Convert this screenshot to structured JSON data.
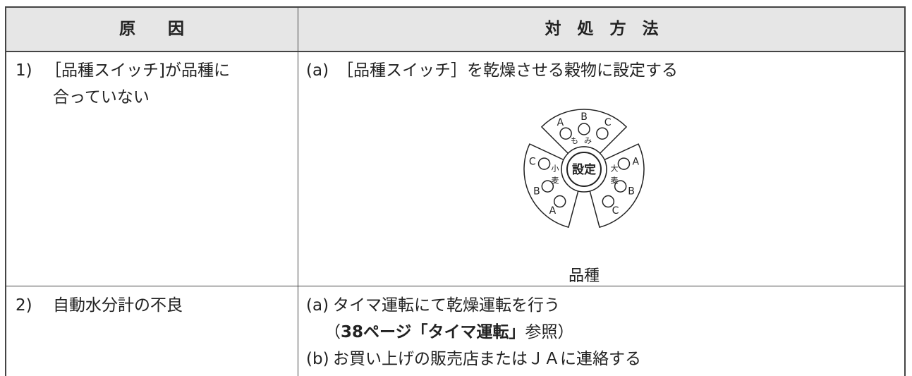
{
  "header": {
    "cause": "原　　因",
    "remedy": "対　処　方　法"
  },
  "rows": [
    {
      "no": "1)",
      "cause": [
        "［品種スイッチ]が品種に",
        "合っていない"
      ],
      "remedies": [
        {
          "label": "(a)",
          "text": "［品種スイッチ］を乾燥させる穀物に設定する"
        }
      ],
      "dial": {
        "groups": [
          {
            "name": "もみ",
            "options": [
              "A",
              "B",
              "C"
            ]
          },
          {
            "name": "小麦",
            "options": [
              "C",
              "B",
              "A"
            ]
          },
          {
            "name": "大麦",
            "options": [
              "A",
              "B",
              "C"
            ]
          }
        ],
        "center": "設定",
        "caption": "品種"
      }
    },
    {
      "no": "2)",
      "cause": [
        "自動水分計の不良"
      ],
      "remedies": [
        {
          "label": "(a)",
          "text": "タイマ運転にて乾燥運転を行う",
          "note": {
            "open": "（",
            "bold": "38ページ「タイマ運転」",
            "close": "参照）"
          }
        },
        {
          "label": "(b)",
          "text": "お買い上げの販売店またはＪＡに連絡する"
        }
      ]
    }
  ]
}
